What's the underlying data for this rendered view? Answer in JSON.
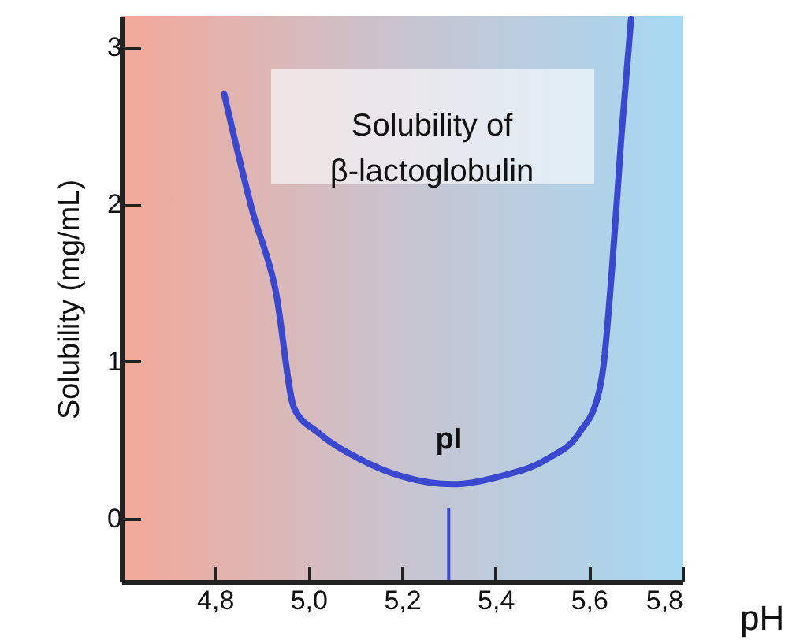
{
  "chart_data": {
    "type": "line",
    "title": "Solubility of β-lactoglobulin",
    "xlabel": "pH",
    "ylabel": "Solubility (mg/mL)",
    "x": [
      4.82,
      4.88,
      4.93,
      4.97,
      5.02,
      5.11,
      5.2,
      5.31,
      5.41,
      5.51,
      5.58,
      5.62,
      5.63,
      5.65,
      5.67,
      5.69
    ],
    "series": [
      {
        "color": "#3a48d0",
        "values": [
          2.7,
          1.96,
          1.45,
          0.7,
          0.55,
          0.38,
          0.27,
          0.22,
          0.27,
          0.38,
          0.55,
          0.79,
          0.95,
          1.62,
          2.46,
          3.18
        ]
      }
    ],
    "xlim": [
      4.6,
      5.8
    ],
    "xticks": [
      {
        "value": 4.8,
        "label": "4,8"
      },
      {
        "value": 5.0,
        "label": "5,0"
      },
      {
        "value": 5.2,
        "label": "5,2"
      },
      {
        "value": 5.4,
        "label": "5,4"
      },
      {
        "value": 5.6,
        "label": "5,6"
      },
      {
        "value": 5.8,
        "label": "5,8"
      }
    ],
    "ylim": [
      -0.4,
      3.2
    ],
    "yticks": [
      0,
      1,
      2,
      3
    ],
    "ref_lines": [
      {
        "axis": "x",
        "value": 5.3,
        "label": "pI",
        "color": "#3a48d0"
      }
    ],
    "grid": false,
    "marker": "none",
    "line_style": "solid"
  }
}
